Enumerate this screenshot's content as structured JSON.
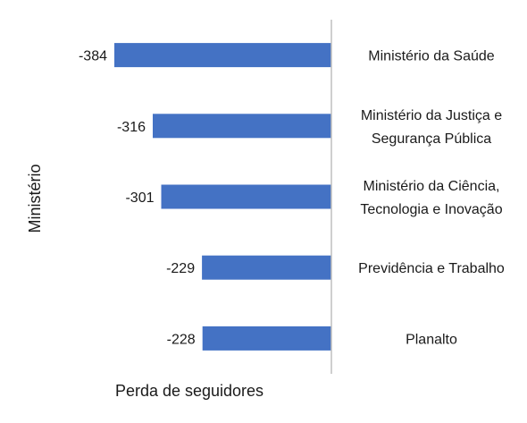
{
  "chart_data": {
    "type": "bar",
    "orientation": "horizontal",
    "categories": [
      [
        "Ministério da Saúde"
      ],
      [
        "Ministério da Justiça e",
        "Segurança Pública"
      ],
      [
        "Ministério da Ciência,",
        "Tecnologia e Inovação"
      ],
      [
        "Previdência e Trabalho"
      ],
      [
        "Planalto"
      ]
    ],
    "values": [
      -384,
      -316,
      -301,
      -229,
      -228
    ],
    "value_labels": [
      "-384",
      "-316",
      "-301",
      "-229",
      "-228"
    ],
    "xlabel": "Perda de seguidores",
    "ylabel": "Ministério",
    "xlim": [
      -400,
      0
    ],
    "grid": false,
    "bar_color": "#4472C4",
    "axis_color": "#BFBFBF"
  }
}
